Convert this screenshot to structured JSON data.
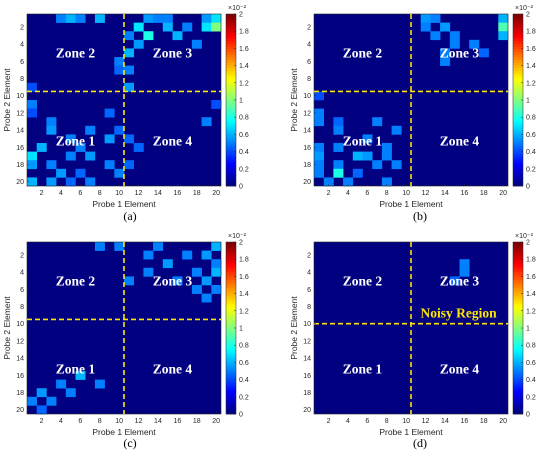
{
  "chart_data": [
    {
      "type": "heatmap",
      "caption": "(a)",
      "xlabel": "Probe 1 Element",
      "ylabel": "Probe 2 Element",
      "xticks": [
        "2",
        "4",
        "6",
        "8",
        "10",
        "12",
        "14",
        "16",
        "18",
        "20"
      ],
      "yticks": [
        "2",
        "4",
        "6",
        "8",
        "10",
        "12",
        "14",
        "16",
        "18",
        "20"
      ],
      "grid_size": 20,
      "divider_x": 10.5,
      "divider_y": 9.5,
      "zones": [
        {
          "label": "Zone 2",
          "x": 5.5,
          "y": 5.0
        },
        {
          "label": "Zone 3",
          "x": 15.5,
          "y": 5.0
        },
        {
          "label": "Zone 1",
          "x": 5.5,
          "y": 15.2
        },
        {
          "label": "Zone 4",
          "x": 15.5,
          "y": 15.2
        }
      ],
      "colorbar": {
        "min": 0,
        "max": 2,
        "ticks": [
          "0",
          "0.2",
          "0.4",
          "0.6",
          "0.8",
          "1",
          "1.2",
          "1.4",
          "1.6",
          "1.8",
          "2"
        ],
        "exponent": "×10⁻²"
      },
      "cells": [
        [
          4,
          1,
          0.5
        ],
        [
          5,
          1,
          0.6
        ],
        [
          6,
          1,
          0.5
        ],
        [
          8,
          1,
          0.6
        ],
        [
          13,
          1,
          0.55
        ],
        [
          14,
          1,
          0.5
        ],
        [
          15,
          1,
          0.5
        ],
        [
          19,
          1,
          0.55
        ],
        [
          20,
          1,
          0.7
        ],
        [
          12,
          2,
          0.7
        ],
        [
          15,
          2,
          0.6
        ],
        [
          17,
          2,
          0.5
        ],
        [
          19,
          2,
          0.7
        ],
        [
          20,
          2,
          1.0
        ],
        [
          11,
          3,
          0.5
        ],
        [
          13,
          3,
          0.8
        ],
        [
          16,
          3,
          0.6
        ],
        [
          12,
          4,
          0.55
        ],
        [
          18,
          4,
          0.5
        ],
        [
          11,
          5,
          0.6
        ],
        [
          10,
          6,
          0.5
        ],
        [
          10,
          7,
          0.45
        ],
        [
          11,
          7,
          0.5
        ],
        [
          11,
          9,
          0.55
        ],
        [
          1,
          9,
          0.4
        ],
        [
          1,
          11,
          0.5
        ],
        [
          20,
          11,
          0.4
        ],
        [
          9,
          12,
          0.45
        ],
        [
          1,
          12,
          0.4
        ],
        [
          3,
          13,
          0.5
        ],
        [
          19,
          13,
          0.5
        ],
        [
          3,
          14,
          0.55
        ],
        [
          7,
          14,
          0.5
        ],
        [
          10,
          14,
          0.45
        ],
        [
          5,
          15,
          0.5
        ],
        [
          9,
          15,
          0.55
        ],
        [
          11,
          15,
          0.45
        ],
        [
          2,
          16,
          0.6
        ],
        [
          6,
          16,
          0.5
        ],
        [
          12,
          16,
          0.45
        ],
        [
          1,
          17,
          0.7
        ],
        [
          5,
          17,
          0.5
        ],
        [
          7,
          17,
          0.55
        ],
        [
          1,
          18,
          0.55
        ],
        [
          3,
          18,
          0.5
        ],
        [
          9,
          18,
          0.5
        ],
        [
          11,
          18,
          0.45
        ],
        [
          4,
          19,
          0.55
        ],
        [
          6,
          19,
          0.45
        ],
        [
          10,
          19,
          0.5
        ],
        [
          1,
          20,
          0.6
        ],
        [
          3,
          20,
          0.55
        ],
        [
          5,
          20,
          0.45
        ],
        [
          7,
          20,
          0.5
        ]
      ]
    },
    {
      "type": "heatmap",
      "caption": "(b)",
      "xlabel": "Probe 1 Element",
      "ylabel": "Probe 2 Element",
      "xticks": [
        "2",
        "4",
        "6",
        "8",
        "10",
        "12",
        "14",
        "16",
        "18",
        "20"
      ],
      "yticks": [
        "2",
        "4",
        "6",
        "8",
        "10",
        "12",
        "14",
        "16",
        "18",
        "20"
      ],
      "grid_size": 20,
      "divider_x": 10.5,
      "divider_y": 9.5,
      "zones": [
        {
          "label": "Zone 2",
          "x": 5.5,
          "y": 5.0
        },
        {
          "label": "Zone 3",
          "x": 15.5,
          "y": 5.0
        },
        {
          "label": "Zone 1",
          "x": 5.5,
          "y": 15.2
        },
        {
          "label": "Zone 4",
          "x": 15.5,
          "y": 15.2
        }
      ],
      "colorbar": {
        "min": 0,
        "max": 2,
        "ticks": [
          "0",
          "0.2",
          "0.4",
          "0.6",
          "0.8",
          "1",
          "1.2",
          "1.4",
          "1.6",
          "1.8",
          "2"
        ],
        "exponent": "×10⁻²"
      },
      "cells": [
        [
          12,
          1,
          0.55
        ],
        [
          13,
          1,
          0.5
        ],
        [
          20,
          1,
          0.6
        ],
        [
          12,
          2,
          0.5
        ],
        [
          14,
          2,
          0.55
        ],
        [
          20,
          2,
          0.9
        ],
        [
          13,
          3,
          0.5
        ],
        [
          15,
          3,
          0.5
        ],
        [
          20,
          3,
          0.6
        ],
        [
          15,
          4,
          0.5
        ],
        [
          17,
          4,
          0.5
        ],
        [
          14,
          5,
          0.5
        ],
        [
          18,
          5,
          0.45
        ],
        [
          14,
          6,
          0.5
        ],
        [
          1,
          10,
          0.4
        ],
        [
          1,
          12,
          0.5
        ],
        [
          1,
          13,
          0.5
        ],
        [
          3,
          13,
          0.45
        ],
        [
          7,
          13,
          0.5
        ],
        [
          3,
          14,
          0.5
        ],
        [
          9,
          14,
          0.5
        ],
        [
          6,
          15,
          0.5
        ],
        [
          1,
          16,
          0.5
        ],
        [
          3,
          16,
          0.5
        ],
        [
          8,
          16,
          0.5
        ],
        [
          1,
          17,
          0.55
        ],
        [
          5,
          17,
          0.6
        ],
        [
          6,
          17,
          0.55
        ],
        [
          8,
          17,
          0.5
        ],
        [
          1,
          18,
          0.5
        ],
        [
          3,
          18,
          0.5
        ],
        [
          7,
          18,
          0.5
        ],
        [
          9,
          18,
          0.5
        ],
        [
          1,
          19,
          0.5
        ],
        [
          3,
          19,
          0.8
        ],
        [
          5,
          19,
          0.45
        ],
        [
          2,
          20,
          0.5
        ],
        [
          4,
          20,
          0.5
        ],
        [
          8,
          20,
          0.5
        ]
      ]
    },
    {
      "type": "heatmap",
      "caption": "(c)",
      "xlabel": "Probe 1 Element",
      "ylabel": "Probe 2 Element",
      "xticks": [
        "2",
        "4",
        "6",
        "8",
        "10",
        "12",
        "14",
        "16",
        "18",
        "20"
      ],
      "yticks": [
        "2",
        "4",
        "6",
        "8",
        "10",
        "12",
        "14",
        "16",
        "18",
        "20"
      ],
      "grid_size": 20,
      "divider_x": 10.5,
      "divider_y": 9.5,
      "zones": [
        {
          "label": "Zone 2",
          "x": 5.5,
          "y": 5.0
        },
        {
          "label": "Zone 3",
          "x": 15.5,
          "y": 5.0
        },
        {
          "label": "Zone 1",
          "x": 5.5,
          "y": 15.2
        },
        {
          "label": "Zone 4",
          "x": 15.5,
          "y": 15.2
        }
      ],
      "colorbar": {
        "min": 0,
        "max": 2,
        "ticks": [
          "0",
          "0.2",
          "0.4",
          "0.6",
          "0.8",
          "1",
          "1.2",
          "1.4",
          "1.6",
          "1.8",
          "2"
        ],
        "exponent": "×10⁻²"
      },
      "cells": [
        [
          8,
          1,
          0.5
        ],
        [
          10,
          1,
          0.5
        ],
        [
          14,
          1,
          0.5
        ],
        [
          20,
          1,
          0.6
        ],
        [
          13,
          2,
          0.5
        ],
        [
          17,
          2,
          0.5
        ],
        [
          19,
          2,
          0.55
        ],
        [
          15,
          3,
          0.55
        ],
        [
          20,
          3,
          0.5
        ],
        [
          13,
          4,
          0.5
        ],
        [
          18,
          4,
          0.5
        ],
        [
          20,
          4,
          0.6
        ],
        [
          11,
          5,
          0.5
        ],
        [
          16,
          5,
          0.5
        ],
        [
          19,
          5,
          0.55
        ],
        [
          18,
          6,
          0.5
        ],
        [
          20,
          6,
          0.5
        ],
        [
          19,
          7,
          0.5
        ],
        [
          6,
          16,
          0.6
        ],
        [
          4,
          17,
          0.5
        ],
        [
          8,
          17,
          0.5
        ],
        [
          2,
          18,
          0.55
        ],
        [
          5,
          18,
          0.5
        ],
        [
          1,
          19,
          0.5
        ],
        [
          3,
          19,
          0.5
        ],
        [
          2,
          20,
          0.45
        ]
      ]
    },
    {
      "type": "heatmap",
      "caption": "(d)",
      "xlabel": "Probe 1 Element",
      "ylabel": "Probe 2 Element",
      "xticks": [
        "2",
        "4",
        "6",
        "8",
        "10",
        "12",
        "14",
        "16",
        "18",
        "20"
      ],
      "yticks": [
        "2",
        "4",
        "6",
        "8",
        "10",
        "12",
        "14",
        "16",
        "18",
        "20"
      ],
      "grid_size": 20,
      "divider_x": 10.5,
      "divider_y": 10.0,
      "zones": [
        {
          "label": "Zone 2",
          "x": 5.5,
          "y": 5.0
        },
        {
          "label": "Zone 3",
          "x": 15.5,
          "y": 5.0
        },
        {
          "label": "Zone 1",
          "x": 5.5,
          "y": 15.2
        },
        {
          "label": "Zone 4",
          "x": 15.5,
          "y": 15.2
        }
      ],
      "annotation": {
        "label": "Noisy Region",
        "x": 15.4,
        "y": 8.7
      },
      "colorbar": {
        "min": 0,
        "max": 2,
        "ticks": [
          "0",
          "0.2",
          "0.4",
          "0.6",
          "0.8",
          "1",
          "1.2",
          "1.4",
          "1.6",
          "1.8",
          "2"
        ],
        "exponent": "×10⁻²"
      },
      "cells": [
        [
          16,
          3,
          0.5
        ],
        [
          16,
          4,
          0.5
        ],
        [
          15,
          5,
          0.45
        ]
      ]
    }
  ]
}
